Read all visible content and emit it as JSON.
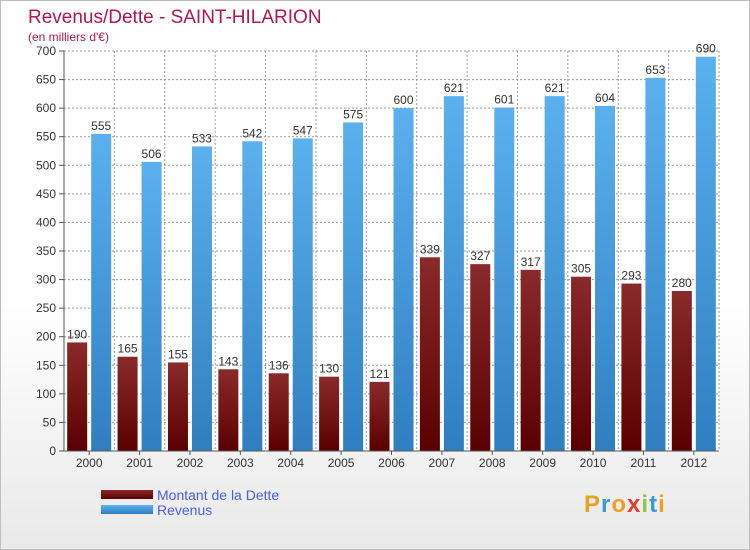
{
  "header": {
    "title": "Revenus/Dette - SAINT-HILARION",
    "subtitle": "(en milliers d'€)"
  },
  "chart_data": {
    "type": "bar",
    "title": "Revenus/Dette - SAINT-HILARION",
    "subtitle": "(en milliers d'€)",
    "categories": [
      "2000",
      "2001",
      "2002",
      "2003",
      "2004",
      "2005",
      "2006",
      "2007",
      "2008",
      "2009",
      "2010",
      "2011",
      "2012"
    ],
    "series": [
      {
        "name": "Montant de la Dette",
        "color": "#7a1414",
        "values": [
          190,
          165,
          155,
          143,
          136,
          130,
          121,
          339,
          327,
          317,
          305,
          293,
          280
        ]
      },
      {
        "name": "Revenus",
        "color": "#4aa3e6",
        "values": [
          555,
          506,
          533,
          542,
          547,
          575,
          600,
          621,
          601,
          621,
          604,
          653,
          690
        ]
      }
    ],
    "ylim": [
      0,
      700
    ],
    "yticks": [
      0,
      50,
      100,
      150,
      200,
      250,
      300,
      350,
      400,
      450,
      500,
      550,
      600,
      650,
      700
    ],
    "grid": true,
    "legend_position": "bottom-left"
  },
  "legend": {
    "items": [
      {
        "label": "Montant de la Dette",
        "color": "#7a1414"
      },
      {
        "label": "Revenus",
        "color": "#4aa3e6"
      }
    ]
  },
  "logo": {
    "text": "Proxiti",
    "letters": [
      "P",
      "r",
      "o",
      "x",
      "i",
      "t",
      "i"
    ],
    "colors": [
      "#f0a020",
      "#3a9ad9",
      "#f0a020",
      "#e63c2e",
      "#8cc63f",
      "#3a9ad9",
      "#f0a020"
    ]
  }
}
